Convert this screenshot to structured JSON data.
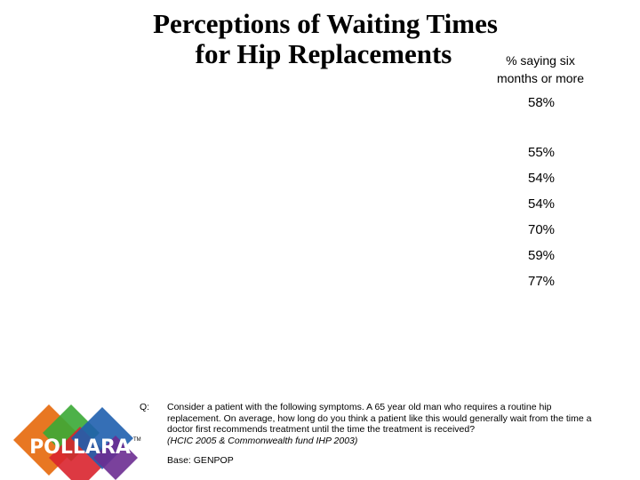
{
  "title": [
    "Perceptions of Waiting Times",
    "for Hip Replacements"
  ],
  "column_header": [
    "% saying six",
    "months or more"
  ],
  "values": [
    "58%",
    "55%",
    "54%",
    "54%",
    "70%",
    "59%",
    "77%"
  ],
  "footer": {
    "q_label": "Q:",
    "question": "Consider a patient with the following symptoms.  A 65 year old man who requires a routine hip replacement.  On average, how long do you think a patient like this would generally wait from the time a doctor first recommends treatment until the time the treatment is received?",
    "citation": "(HCIC 2005 & Commonwealth fund IHP 2003)",
    "base": "Base: GENPOP"
  },
  "logo": {
    "name": "POLLARA",
    "mark": "TM"
  }
}
